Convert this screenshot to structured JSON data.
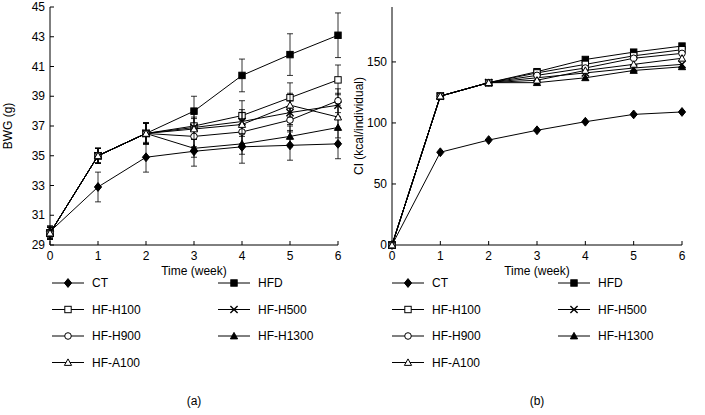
{
  "chart_data": [
    {
      "type": "line",
      "title": "(a)",
      "x_label": "Time (week)",
      "y_label": "BWG (g)",
      "x": [
        0,
        1,
        2,
        3,
        4,
        5,
        6
      ],
      "xlim": [
        0,
        6
      ],
      "xticks": [
        0,
        1,
        2,
        3,
        4,
        5,
        6
      ],
      "ylim": [
        29,
        45
      ],
      "yticks": [
        29,
        31,
        33,
        35,
        37,
        39,
        41,
        43,
        45
      ],
      "legend": "bottom",
      "series": [
        {
          "name": "CT",
          "color": "#000000",
          "marker": "diamond",
          "line_style": "solid",
          "values": [
            29.9,
            32.9,
            34.9,
            35.3,
            35.6,
            35.7,
            35.8
          ],
          "errors": [
            0.4,
            1.0,
            1.0,
            1.0,
            1.1,
            1.0,
            1.0
          ]
        },
        {
          "name": "HFD",
          "color": "#000000",
          "marker": "square",
          "line_style": "solid",
          "values": [
            29.8,
            35.0,
            36.5,
            38.0,
            40.4,
            41.8,
            43.1
          ],
          "errors": [
            0.4,
            0.5,
            0.7,
            1.0,
            1.1,
            1.4,
            1.5
          ]
        },
        {
          "name": "HF-H100",
          "color": "#000000",
          "marker": "square-open",
          "line_style": "solid",
          "values": [
            29.8,
            35.0,
            36.5,
            37.0,
            37.7,
            38.9,
            40.1
          ],
          "errors": [
            0.4,
            0.5,
            0.7,
            0.8,
            1.0,
            1.0,
            1.0
          ]
        },
        {
          "name": "HF-H500",
          "color": "#000000",
          "marker": "x",
          "line_style": "solid",
          "values": [
            29.8,
            35.0,
            36.5,
            36.9,
            37.3,
            37.9,
            38.4
          ],
          "errors": [
            0.4,
            0.5,
            0.7,
            0.7,
            0.8,
            0.8,
            0.8
          ]
        },
        {
          "name": "HF-H900",
          "color": "#000000",
          "marker": "circle-open",
          "line_style": "solid",
          "values": [
            29.8,
            35.0,
            36.5,
            36.3,
            36.6,
            37.4,
            38.7
          ],
          "errors": [
            0.4,
            0.5,
            0.7,
            0.7,
            0.8,
            0.8,
            0.8
          ]
        },
        {
          "name": "HF-H1300",
          "color": "#000000",
          "marker": "triangle",
          "line_style": "solid",
          "values": [
            29.8,
            35.0,
            36.5,
            35.5,
            35.8,
            36.3,
            36.9
          ],
          "errors": [
            0.4,
            0.5,
            0.7,
            0.6,
            0.7,
            0.7,
            0.7
          ]
        },
        {
          "name": "HF-A100",
          "color": "#000000",
          "marker": "triangle-open",
          "line_style": "solid",
          "values": [
            29.8,
            35.0,
            36.5,
            36.8,
            37.1,
            38.4,
            37.6
          ],
          "errors": [
            0.4,
            0.5,
            0.7,
            0.7,
            0.8,
            0.8,
            0.8
          ]
        }
      ]
    },
    {
      "type": "line",
      "title": "(b)",
      "x_label": "Time (week)",
      "y_label": "CI (kcal/individual)",
      "x": [
        0,
        1,
        2,
        3,
        4,
        5,
        6
      ],
      "xlim": [
        0,
        6
      ],
      "xticks": [
        0,
        1,
        2,
        3,
        4,
        5,
        6
      ],
      "ylim": [
        0,
        195
      ],
      "yticks": [
        0,
        50,
        100,
        150
      ],
      "legend": "bottom",
      "series": [
        {
          "name": "CT",
          "color": "#000000",
          "marker": "diamond",
          "line_style": "solid",
          "values": [
            0,
            76,
            86,
            94,
            101,
            107,
            109
          ]
        },
        {
          "name": "HFD",
          "color": "#000000",
          "marker": "square",
          "line_style": "solid",
          "values": [
            0,
            122,
            133,
            142,
            152,
            158,
            163
          ]
        },
        {
          "name": "HF-H100",
          "color": "#000000",
          "marker": "square-open",
          "line_style": "solid",
          "values": [
            0,
            122,
            133,
            141,
            148,
            155,
            160
          ]
        },
        {
          "name": "HF-H500",
          "color": "#000000",
          "marker": "x",
          "line_style": "solid",
          "values": [
            0,
            122,
            133,
            137,
            141,
            145,
            148
          ]
        },
        {
          "name": "HF-H900",
          "color": "#000000",
          "marker": "circle-open",
          "line_style": "solid",
          "values": [
            0,
            122,
            133,
            139,
            145,
            153,
            157
          ]
        },
        {
          "name": "HF-H1300",
          "color": "#000000",
          "marker": "triangle",
          "line_style": "solid",
          "values": [
            0,
            122,
            133,
            133,
            137,
            143,
            146
          ]
        },
        {
          "name": "HF-A100",
          "color": "#000000",
          "marker": "triangle-open",
          "line_style": "solid",
          "values": [
            0,
            122,
            133,
            135,
            143,
            148,
            153
          ]
        }
      ]
    }
  ]
}
